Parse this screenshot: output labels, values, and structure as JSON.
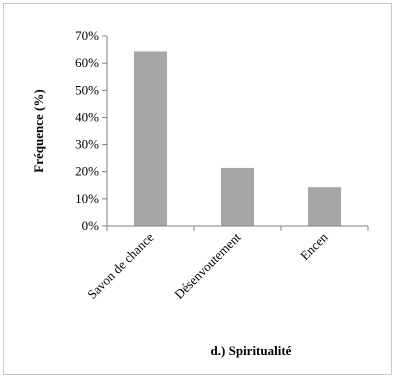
{
  "chart_data": {
    "type": "bar",
    "categories": [
      "Savon de chance",
      "Désenvoutement",
      "Encen"
    ],
    "values": [
      64.3,
      21.4,
      14.3
    ],
    "ylabel": "Fréquence (%)",
    "xlabel": "d.) Spiritualité",
    "ylim": [
      0,
      70
    ],
    "yticks": [
      0,
      10,
      20,
      30,
      40,
      50,
      60,
      70
    ],
    "ytick_format": "percent",
    "grid": false,
    "legend": "none",
    "bar_color": "#a6a6a6",
    "axis_color": "#808080"
  }
}
